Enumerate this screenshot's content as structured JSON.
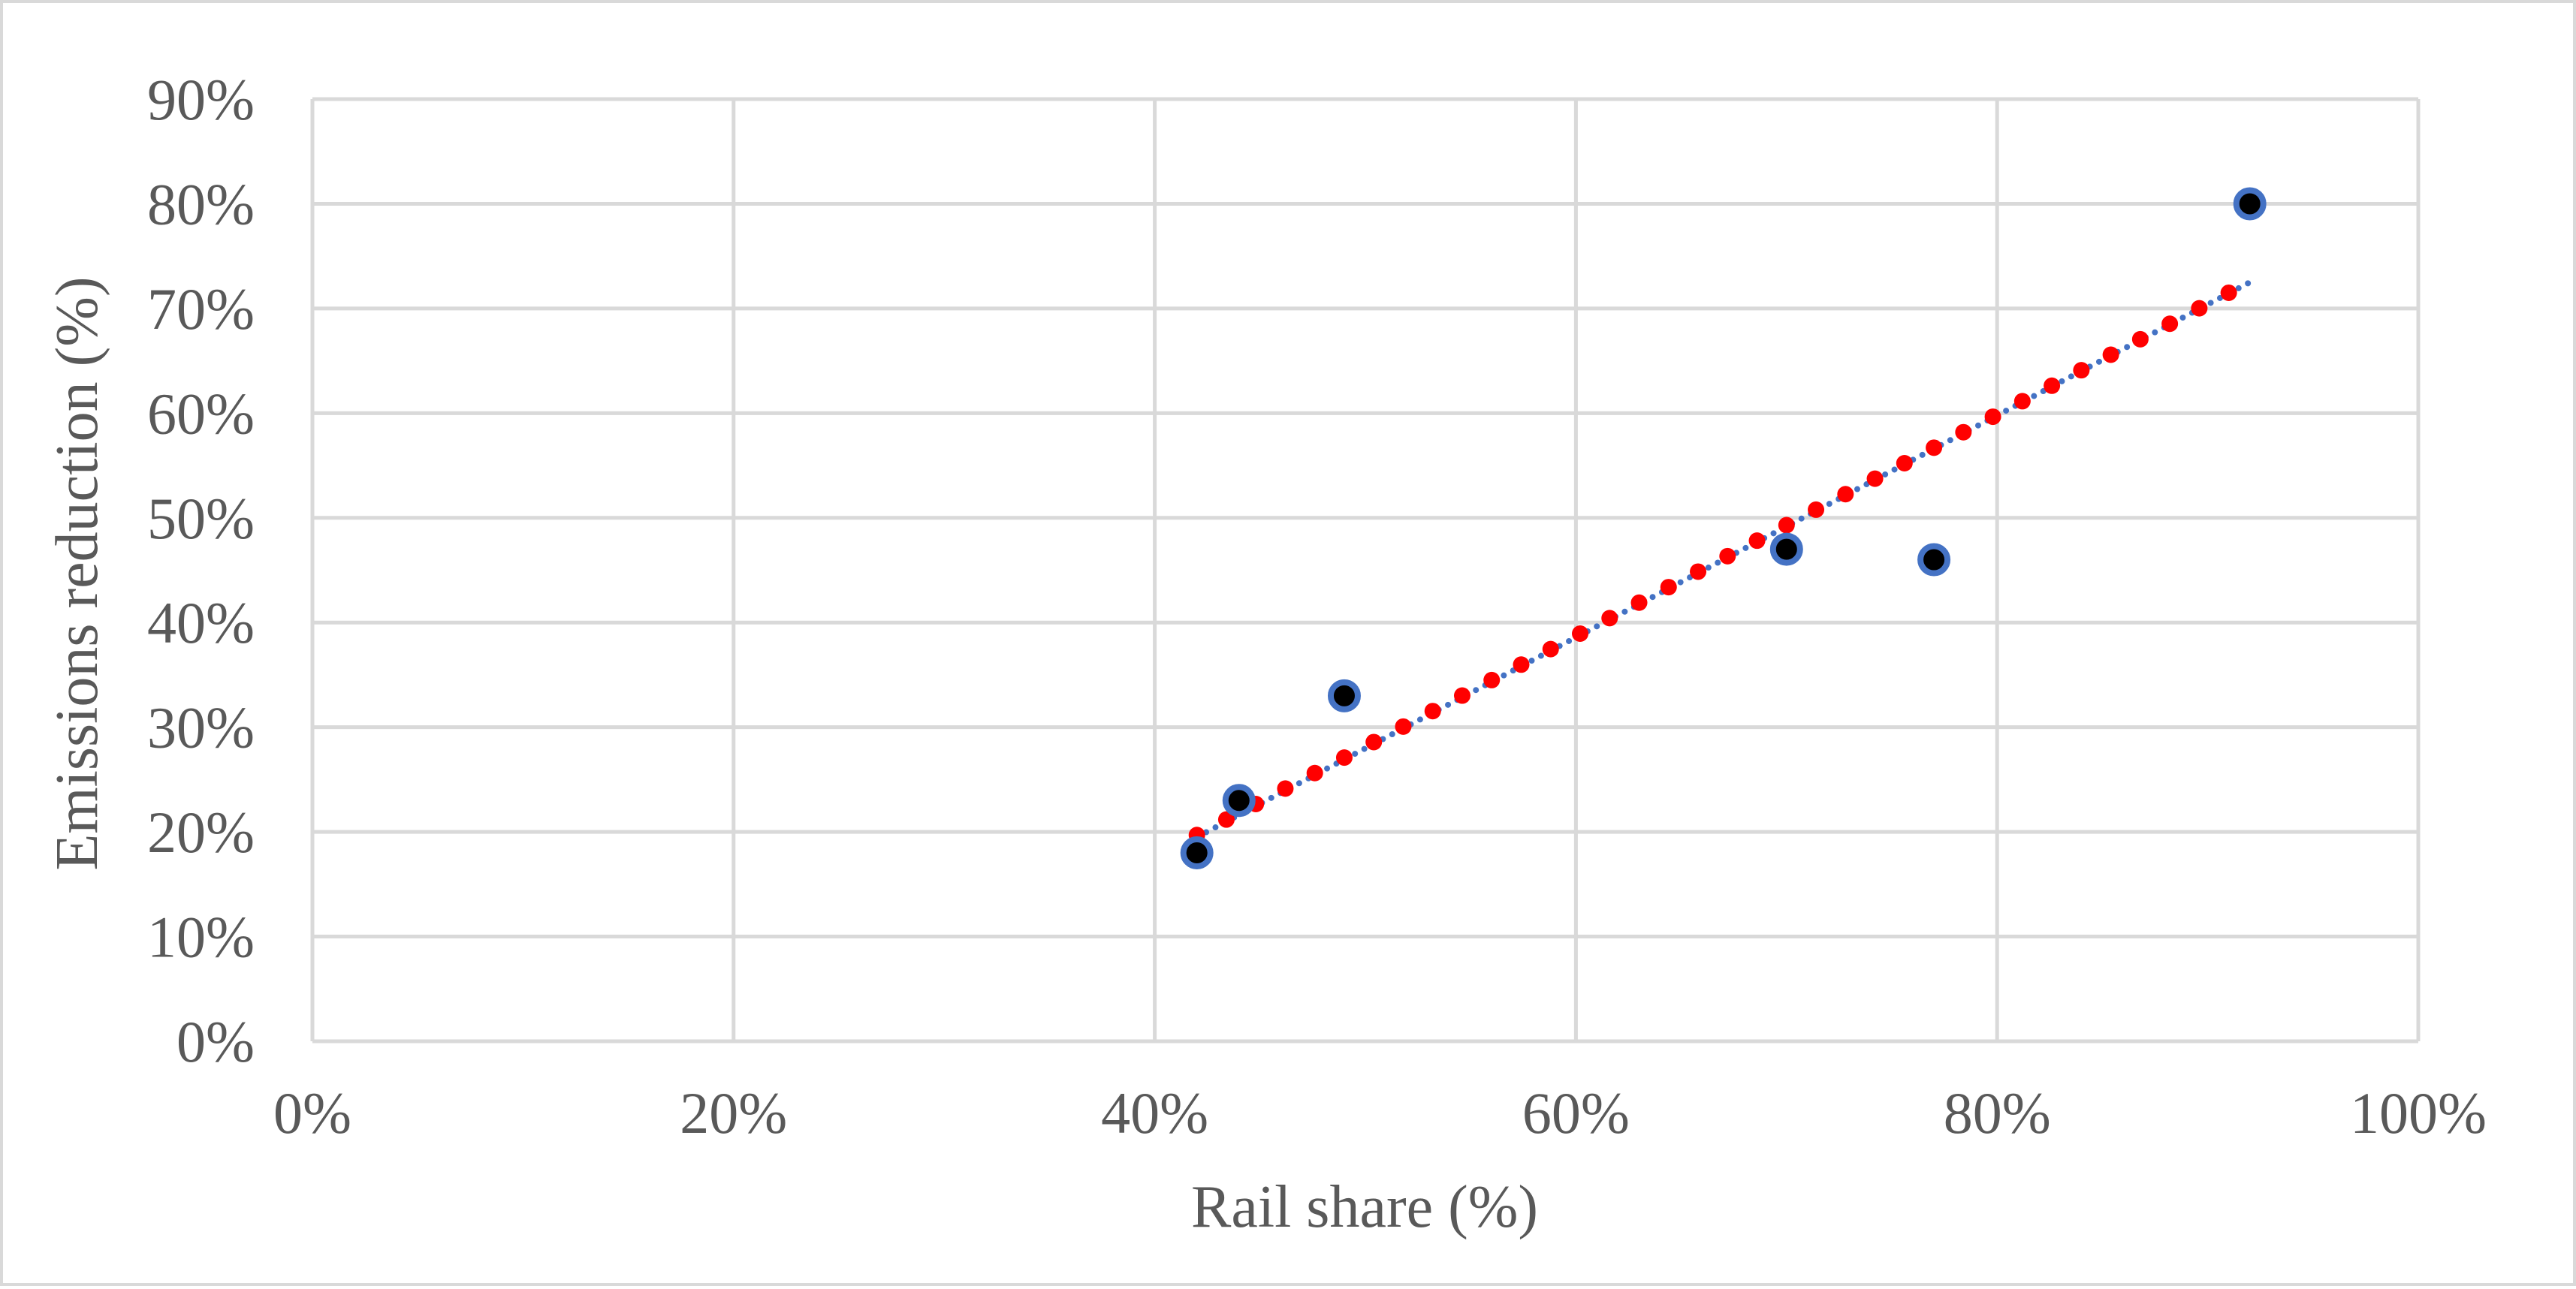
{
  "chart_data": {
    "type": "scatter",
    "title": "",
    "xlabel": "Rail share (%)",
    "ylabel": "Emissions reduction (%)",
    "xlim": [
      0,
      1
    ],
    "ylim": [
      0,
      0.9
    ],
    "x_ticks": [
      "0%",
      "20%",
      "40%",
      "60%",
      "80%",
      "100%"
    ],
    "y_ticks": [
      "0%",
      "10%",
      "20%",
      "30%",
      "40%",
      "50%",
      "60%",
      "70%",
      "80%",
      "90%"
    ],
    "grid": true,
    "legend": "none",
    "series": [
      {
        "x": [
          0.42,
          0.44,
          0.49,
          0.7,
          0.77,
          0.92
        ],
        "y": [
          0.18,
          0.23,
          0.33,
          0.47,
          0.46,
          0.8
        ],
        "marker_fill": "#000000",
        "marker_edge": "#4472c4"
      }
    ],
    "trendlines": [
      {
        "kind": "linear",
        "x_range": [
          0.42,
          0.92
        ],
        "y_range": [
          0.195,
          0.725
        ],
        "color": "#4472c4",
        "style": "dotted"
      },
      {
        "kind": "linear",
        "x_range": [
          0.42,
          0.91
        ],
        "y_range": [
          0.197,
          0.715
        ],
        "color": "#ff0000",
        "style": "dots"
      }
    ],
    "colors": {
      "grid": "#d9d9d9",
      "text": "#595959"
    }
  }
}
